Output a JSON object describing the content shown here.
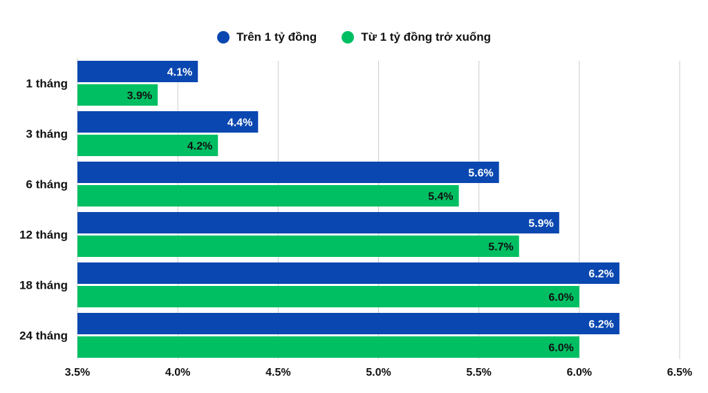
{
  "colors": {
    "series1": "#0a47b0",
    "series2": "#00bf63",
    "grid": "#cccccc",
    "text": "#111111",
    "label_light": "#ffffff",
    "label_dark": "#111111"
  },
  "chart_data": {
    "type": "bar",
    "orientation": "horizontal",
    "title": "",
    "xlabel": "",
    "ylabel": "",
    "categories": [
      "1 tháng",
      "3 tháng",
      "6 tháng",
      "12 tháng",
      "18 tháng",
      "24 tháng"
    ],
    "series": [
      {
        "name": "Trên 1 tỷ đồng",
        "values": [
          4.1,
          4.4,
          5.6,
          5.9,
          6.2,
          6.2
        ],
        "labels": [
          "4.1%",
          "4.4%",
          "5.6%",
          "5.9%",
          "6.2%",
          "6.2%"
        ]
      },
      {
        "name": "Từ 1 tỷ đồng trở xuống",
        "values": [
          3.9,
          4.2,
          5.4,
          5.7,
          6.0,
          6.0
        ],
        "labels": [
          "3.9%",
          "4.2%",
          "5.4%",
          "5.7%",
          "6.0%",
          "6.0%"
        ]
      }
    ],
    "xlim": [
      3.5,
      6.5
    ],
    "xticks": [
      3.5,
      4.0,
      4.5,
      5.0,
      5.5,
      6.0,
      6.5
    ],
    "xtick_labels": [
      "3.5%",
      "4.0%",
      "4.5%",
      "5.0%",
      "5.5%",
      "6.0%",
      "6.5%"
    ],
    "grid": true,
    "legend_position": "top-center"
  }
}
